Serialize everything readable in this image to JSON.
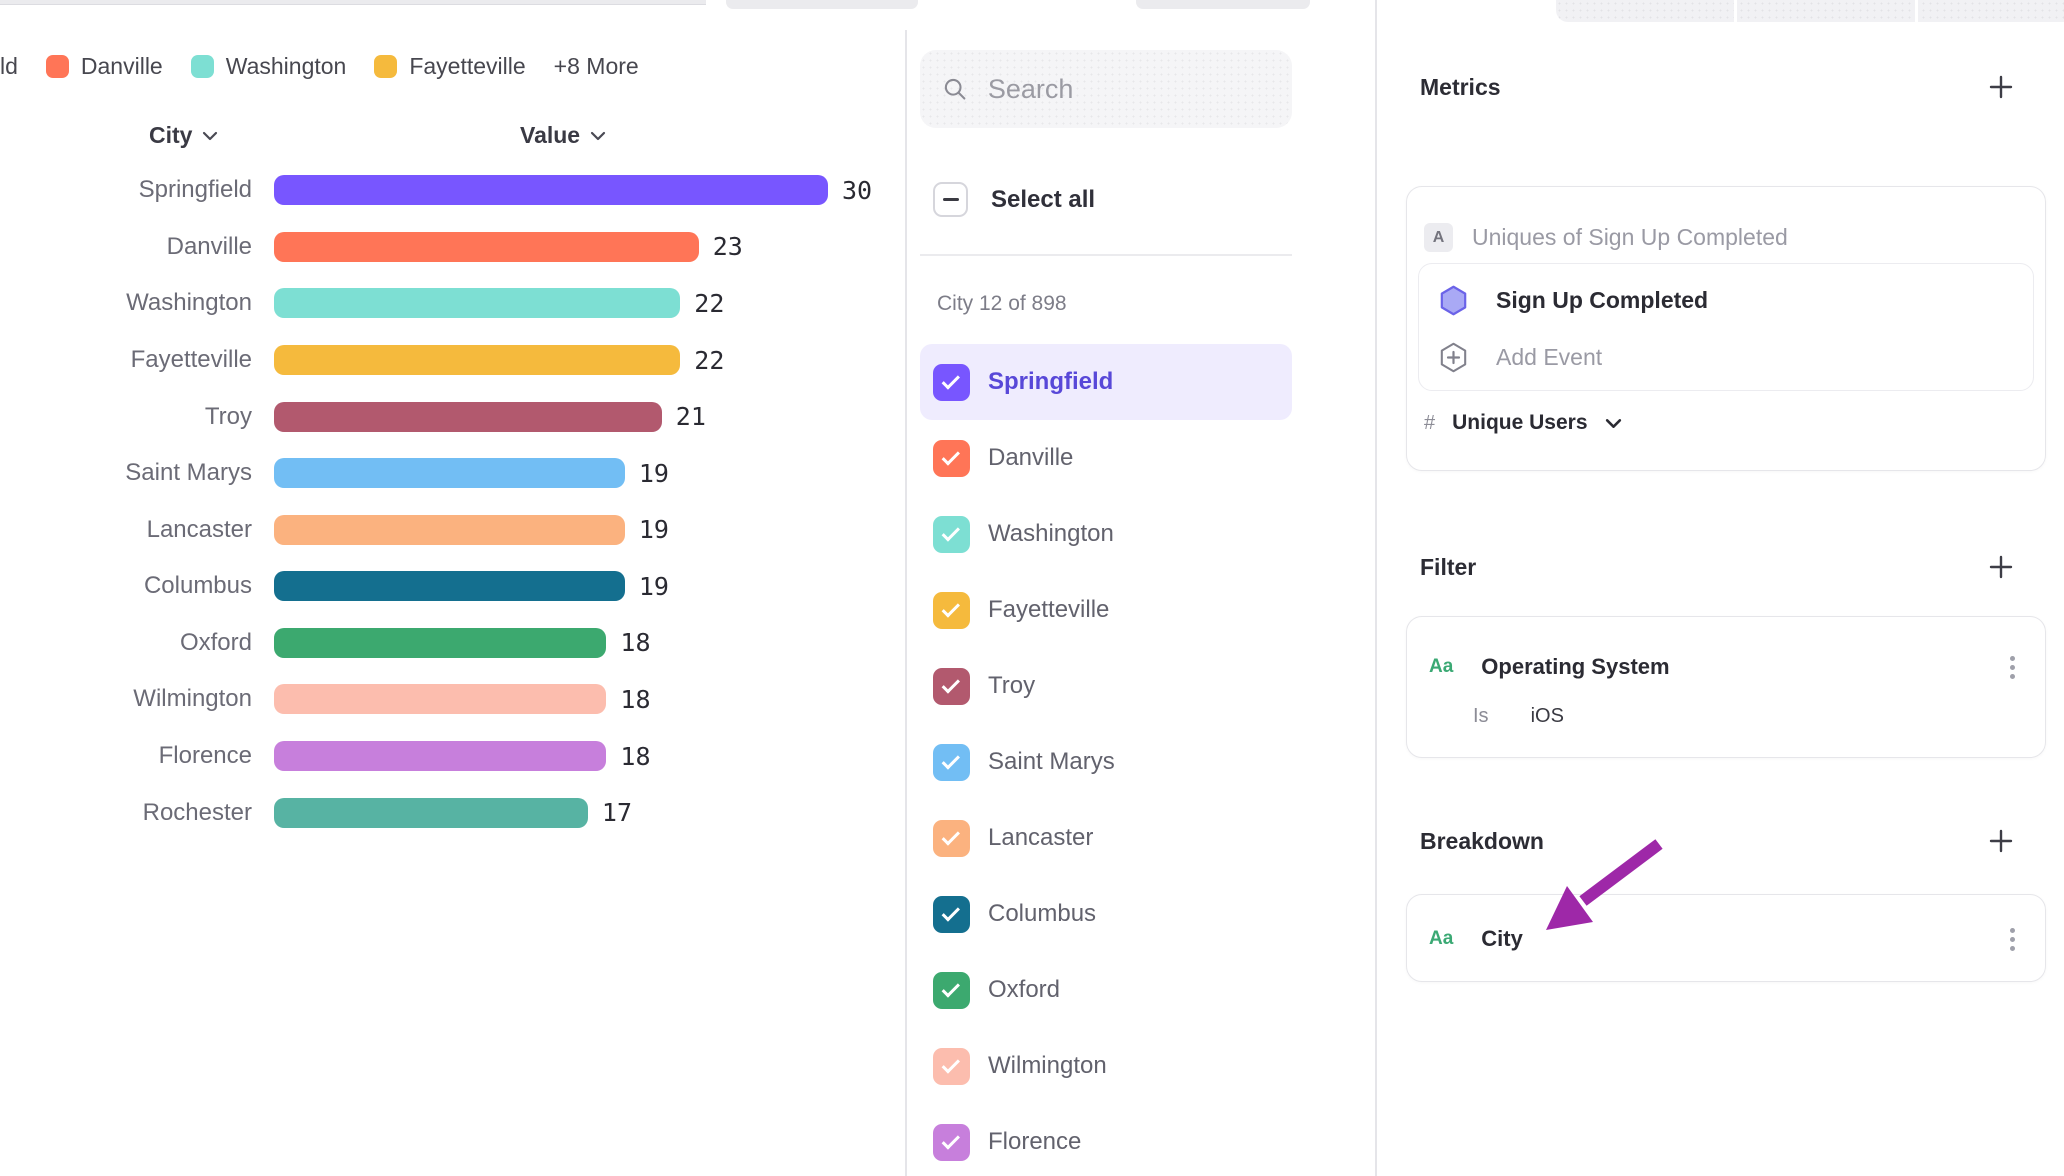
{
  "chart_data": {
    "type": "bar",
    "orientation": "horizontal",
    "title": "",
    "xlabel": "Value",
    "ylabel": "City",
    "xlim": [
      0,
      30
    ],
    "grid": false,
    "value_labels": true,
    "column_headers": {
      "category": "City",
      "value": "Value"
    },
    "categories": [
      "Springfield",
      "Danville",
      "Washington",
      "Fayetteville",
      "Troy",
      "Saint Marys",
      "Lancaster",
      "Columbus",
      "Oxford",
      "Wilmington",
      "Florence",
      "Rochester"
    ],
    "values": [
      30,
      23,
      22,
      22,
      21,
      19,
      19,
      19,
      18,
      18,
      18,
      17
    ],
    "colors": [
      "#7856FF",
      "#FF7557",
      "#7DDFD3",
      "#F5BA3D",
      "#B2596E",
      "#72BEF4",
      "#FBB27F",
      "#146F8F",
      "#3CA96F",
      "#FCBDAE",
      "#C77FDC",
      "#57B3A3"
    ],
    "legend": {
      "position": "top",
      "clipped_label": "ld",
      "items": [
        {
          "label": "Danville",
          "color": "#FF7557"
        },
        {
          "label": "Washington",
          "color": "#7DDFD3"
        },
        {
          "label": "Fayetteville",
          "color": "#F5BA3D"
        }
      ],
      "overflow_label": "+8 More"
    }
  },
  "filters_panel": {
    "search_placeholder": "Search",
    "select_all_label": "Select all",
    "count_label": "City 12 of 898",
    "items": [
      {
        "label": "Springfield",
        "color": "#7856FF",
        "selected": true
      },
      {
        "label": "Danville",
        "color": "#FF7557",
        "selected": false
      },
      {
        "label": "Washington",
        "color": "#7DDFD3",
        "selected": false
      },
      {
        "label": "Fayetteville",
        "color": "#F5BA3D",
        "selected": false
      },
      {
        "label": "Troy",
        "color": "#B2596E",
        "selected": false
      },
      {
        "label": "Saint Marys",
        "color": "#72BEF4",
        "selected": false
      },
      {
        "label": "Lancaster",
        "color": "#FBB27F",
        "selected": false
      },
      {
        "label": "Columbus",
        "color": "#146F8F",
        "selected": false
      },
      {
        "label": "Oxford",
        "color": "#3CA96F",
        "selected": false
      },
      {
        "label": "Wilmington",
        "color": "#FCBDAE",
        "selected": false
      },
      {
        "label": "Florence",
        "color": "#C77FDC",
        "selected": false
      }
    ]
  },
  "inspector": {
    "metrics_title": "Metrics",
    "metric": {
      "badge": "A",
      "summary": "Uniques of Sign Up Completed",
      "event_name": "Sign Up Completed",
      "add_event_label": "Add Event",
      "measure_prefix": "#",
      "measure": "Unique Users"
    },
    "filter_title": "Filter",
    "filter": {
      "type_label": "Aa",
      "property": "Operating System",
      "operator": "Is",
      "value": "iOS"
    },
    "breakdown_title": "Breakdown",
    "breakdown": {
      "type_label": "Aa",
      "property": "City"
    }
  },
  "annotation": {
    "arrow_color": "#9E28A8"
  },
  "theme": {
    "selected_text": "#5848D8",
    "selected_row_bg": "#EFECFE",
    "type_label_green": "#3BA974"
  }
}
